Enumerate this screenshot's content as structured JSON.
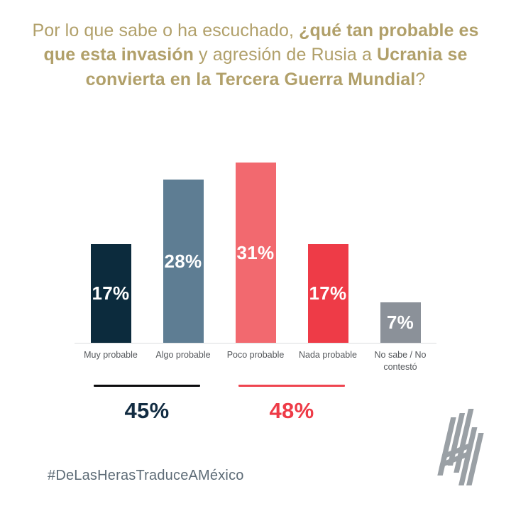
{
  "title": {
    "color": "#b1a06a",
    "segments": [
      {
        "text": "Por lo que sabe o ha escuchado, ",
        "bold": false
      },
      {
        "text": "¿qué tan probable es que esta invasión",
        "bold": true
      },
      {
        "text": " y agresión de Rusia a ",
        "bold": false
      },
      {
        "text": "Ucrania se convierta en la Tercera Guerra Mundial",
        "bold": true
      },
      {
        "text": "?",
        "bold": false
      }
    ],
    "full_text": "Por lo que sabe o ha escuchado, ¿qué tan probable es que esta invasión y agresión de Rusia a Ucrania se convierta en la Tercera Guerra Mundial?"
  },
  "chart_data": {
    "type": "bar",
    "categories": [
      "Muy probable",
      "Algo probable",
      "Poco probable",
      "Nada probable",
      "No sabe / No contestó"
    ],
    "values": [
      17,
      28,
      31,
      17,
      7
    ],
    "value_labels": [
      "17%",
      "28%",
      "31%",
      "17%",
      "7%"
    ],
    "bar_colors": [
      "#0c2b3d",
      "#5e7d93",
      "#f2696f",
      "#ee3b47",
      "#8b9199"
    ],
    "value_label_color": "#ffffff",
    "category_label_color": "#54575b",
    "axis_line_color": "#dcdddf",
    "ylim": [
      0,
      32
    ],
    "grid": false,
    "legend": "none",
    "groups": [
      {
        "label": "45%",
        "text_color": "#122c42",
        "line_color": "#0b0b0d",
        "span_start": 0,
        "span_end": 1
      },
      {
        "label": "48%",
        "text_color": "#ee3b47",
        "line_color": "#ef4550",
        "span_start": 2,
        "span_end": 3
      }
    ]
  },
  "footer": {
    "hashtag": "#DeLasHerasTraduceAMéxico",
    "hashtag_color": "#5d6b76"
  },
  "logo": {
    "name": "De Las Heras brand mark",
    "color": "#9aa0a5"
  }
}
